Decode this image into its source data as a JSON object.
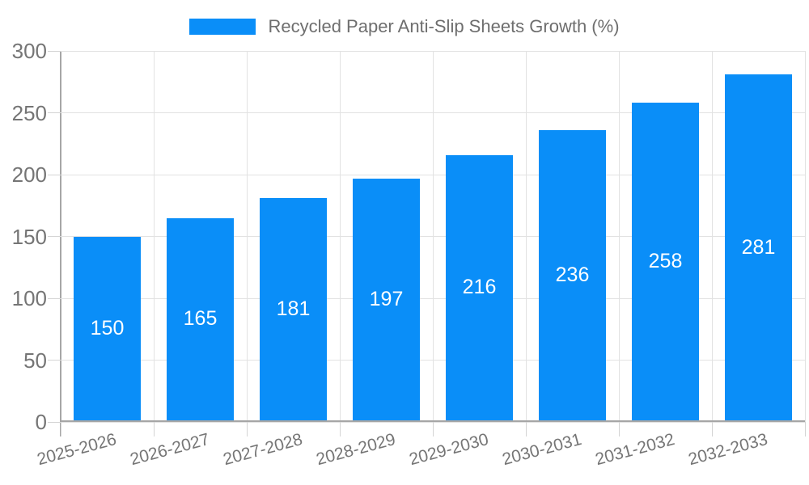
{
  "colors": {
    "bar": "#0a8ef8",
    "value_label": "#ffffff",
    "legend_text": "#6e6e6e",
    "axis_text": "#757575",
    "gridline": "#e2e2e2",
    "axis_line": "#a6a6a6",
    "background": "#ffffff"
  },
  "legend": {
    "label": "Recycled Paper Anti-Slip Sheets Growth (%)",
    "position": "top-center"
  },
  "chart_data": {
    "type": "bar",
    "title": "Recycled Paper Anti-Slip Sheets Growth (%)",
    "series_name": "Recycled Paper Anti-Slip Sheets Growth (%)",
    "categories": [
      "2025-2026",
      "2026-2027",
      "2027-2028",
      "2028-2029",
      "2029-2030",
      "2030-2031",
      "2031-2032",
      "2032-2033"
    ],
    "values": [
      150,
      165,
      181,
      197,
      216,
      236,
      258,
      281
    ],
    "xlabel": "",
    "ylabel": "",
    "ylim": [
      0,
      300
    ],
    "ytick_interval": 50,
    "y_ticks": [
      0,
      50,
      100,
      150,
      200,
      250,
      300
    ],
    "grid": true,
    "value_labels": "inside-center",
    "x_label_rotation_deg": -15,
    "legend_position": "top-center"
  }
}
